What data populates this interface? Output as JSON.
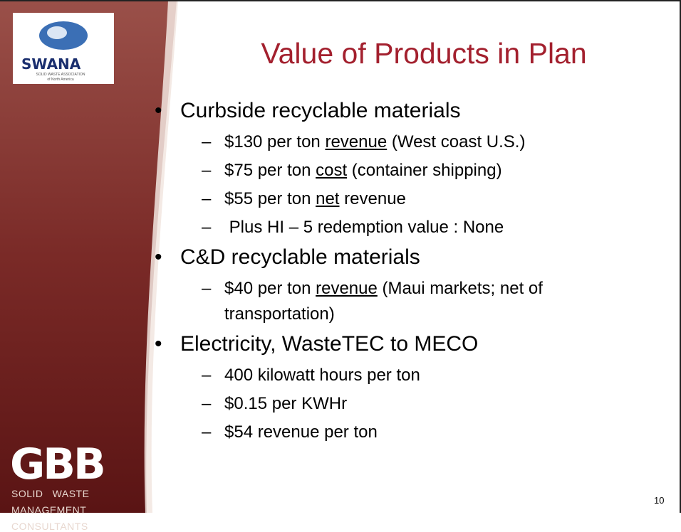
{
  "slide": {
    "title": "Value of Products in Plan",
    "logo_top": {
      "name": "SWANA",
      "line1": "SOLID WASTE ASSOCIATION",
      "line2": "of North America"
    },
    "logo_bottom": {
      "name": "GBB",
      "lines": [
        "SOLID   WASTE",
        "MANAGEMENT",
        "CONSULTANTS"
      ]
    },
    "bullets": [
      {
        "text": "Curbside recyclable materials",
        "items": [
          [
            {
              "text": "$130 per ton "
            },
            {
              "text": "revenue",
              "underline": true
            },
            {
              "text": " (West coast U.S.)"
            }
          ],
          [
            {
              "text": "$75 per ton "
            },
            {
              "text": "cost",
              "underline": true
            },
            {
              "text": " (container shipping)"
            }
          ],
          [
            {
              "text": "$55 per ton "
            },
            {
              "text": "net",
              "underline": true
            },
            {
              "text": " revenue"
            }
          ],
          [
            {
              "text": " Plus HI – 5 redemption value : None"
            }
          ]
        ]
      },
      {
        "text": "C&D recyclable materials",
        "items": [
          [
            {
              "text": "$40 per ton "
            },
            {
              "text": "revenue",
              "underline": true
            },
            {
              "text": " (Maui markets; net of transportation)"
            }
          ]
        ]
      },
      {
        "text": "Electricity, WasteTEC to MECO",
        "items": [
          [
            {
              "text": "400 kilowatt hours per ton"
            }
          ],
          [
            {
              "text": "$0.15 per KWHr"
            }
          ],
          [
            {
              "text": "$54 revenue per ton"
            }
          ]
        ]
      }
    ],
    "page_number": "10"
  }
}
